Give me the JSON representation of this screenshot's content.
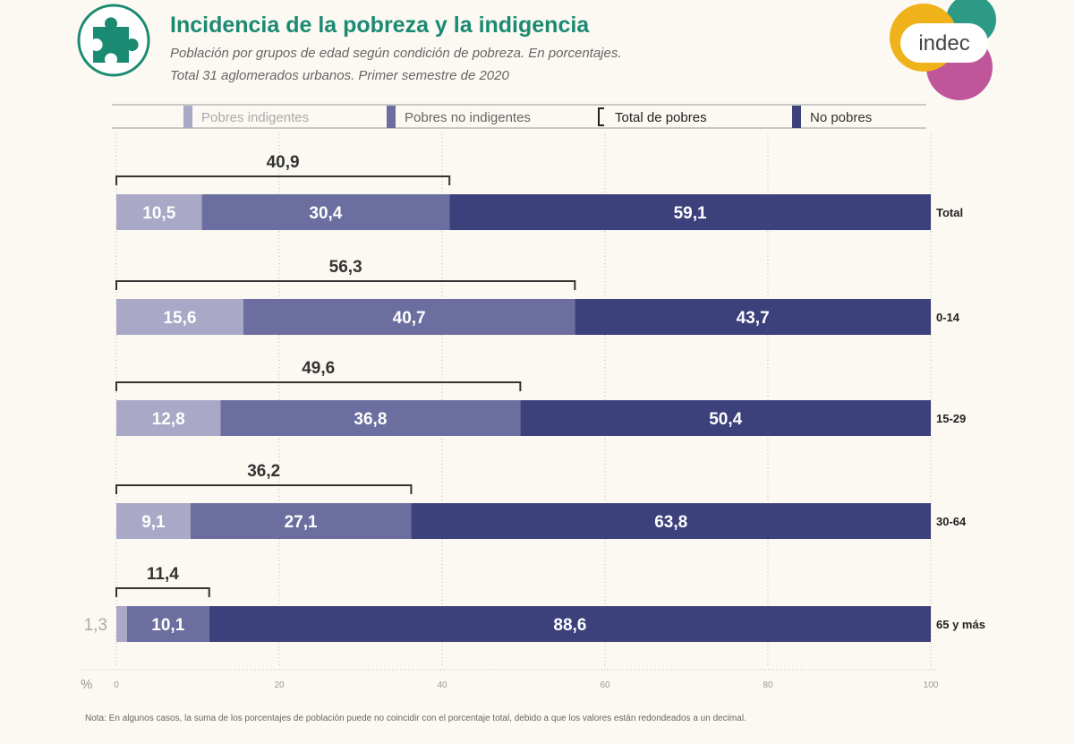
{
  "header": {
    "title": "Incidencia de la pobreza y la indigencia",
    "subtitle1": "Población por grupos de edad según condición de pobreza. En porcentajes.",
    "subtitle2": "Total 31 aglomerados urbanos. Primer semestre de 2020",
    "logo_text": "indec",
    "icon": "puzzle-icon"
  },
  "chart_data": {
    "type": "bar",
    "orientation": "horizontal-stacked",
    "categories": [
      "Total",
      "0-14",
      "15-29",
      "30-64",
      "65 y más"
    ],
    "series": [
      {
        "name": "Pobres indigentes",
        "values": [
          10.5,
          15.6,
          12.8,
          9.1,
          1.3
        ],
        "color": "#a9a8c6"
      },
      {
        "name": "Pobres no indigentes",
        "values": [
          30.4,
          40.7,
          36.8,
          27.1,
          10.1
        ],
        "color": "#6c6e9f"
      },
      {
        "name": "No pobres",
        "values": [
          59.1,
          43.7,
          50.4,
          63.8,
          88.6
        ],
        "color": "#3c407b"
      }
    ],
    "bracket": {
      "name": "Total de pobres",
      "values": [
        40.9,
        56.3,
        49.6,
        36.2,
        11.4
      ]
    },
    "legend": [
      "Pobres indigentes",
      "Pobres no indigentes",
      "Total de pobres",
      "No pobres"
    ],
    "legend_placement": "top",
    "xlabel": "%",
    "xlim": [
      0,
      100
    ],
    "xticks": [
      0,
      20,
      40,
      60,
      80,
      100
    ],
    "grid": true,
    "note": "Nota: En algunos casos, la suma de los porcentajes de población puede no coincidir con el porcentaje total, debido a que los valores están redondeados a un decimal."
  }
}
